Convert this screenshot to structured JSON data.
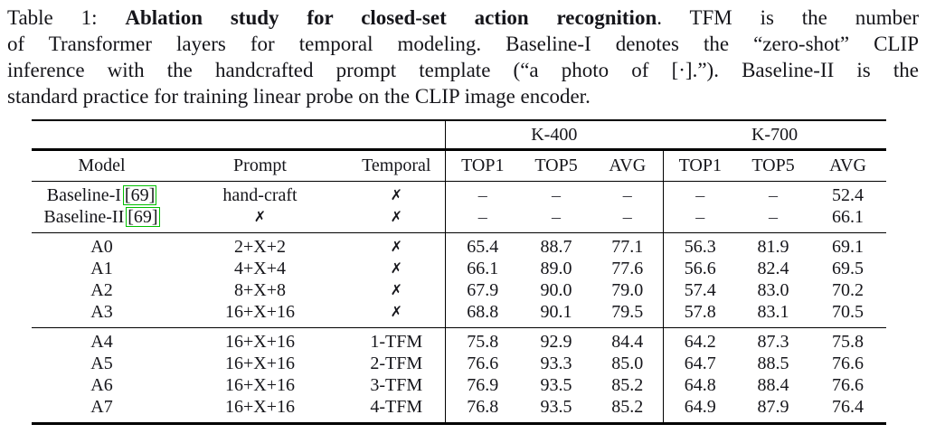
{
  "caption": {
    "line1_prefix": "Table 1: ",
    "line1_bold": "Ablation study for closed-set action recognition",
    "line1_rest": ". TFM is the number",
    "line2": "of Transformer layers for temporal modeling. Baseline-I denotes the “zero-shot” CLIP",
    "line3": "inference with the handcrafted prompt template (“a photo of [·].”). Baseline-II is the",
    "line4": "standard practice for training linear probe on the CLIP image encoder."
  },
  "table": {
    "groups": [
      "K-400",
      "K-700"
    ],
    "columns": [
      "Model",
      "Prompt",
      "Temporal",
      "TOP1",
      "TOP5",
      "AVG",
      "TOP1",
      "TOP5",
      "AVG"
    ],
    "sections": [
      {
        "rows": [
          {
            "model": "Baseline-I",
            "cite": "[69]",
            "prompt": "hand-craft",
            "temporal": "✗",
            "values": [
              "–",
              "–",
              "–",
              "–",
              "–",
              "52.4"
            ]
          },
          {
            "model": "Baseline-II",
            "cite": "[69]",
            "prompt": "✗",
            "temporal": "✗",
            "values": [
              "–",
              "–",
              "–",
              "–",
              "–",
              "66.1"
            ]
          }
        ]
      },
      {
        "rows": [
          {
            "model": "A0",
            "prompt": "2+X+2",
            "temporal": "✗",
            "values": [
              "65.4",
              "88.7",
              "77.1",
              "56.3",
              "81.9",
              "69.1"
            ]
          },
          {
            "model": "A1",
            "prompt": "4+X+4",
            "temporal": "✗",
            "values": [
              "66.1",
              "89.0",
              "77.6",
              "56.6",
              "82.4",
              "69.5"
            ]
          },
          {
            "model": "A2",
            "prompt": "8+X+8",
            "temporal": "✗",
            "values": [
              "67.9",
              "90.0",
              "79.0",
              "57.4",
              "83.0",
              "70.2"
            ]
          },
          {
            "model": "A3",
            "prompt": "16+X+16",
            "temporal": "✗",
            "values": [
              "68.8",
              "90.1",
              "79.5",
              "57.8",
              "83.1",
              "70.5"
            ]
          }
        ]
      },
      {
        "rows": [
          {
            "model": "A4",
            "prompt": "16+X+16",
            "temporal": "1-TFM",
            "values": [
              "75.8",
              "92.9",
              "84.4",
              "64.2",
              "87.3",
              "75.8"
            ]
          },
          {
            "model": "A5",
            "prompt": "16+X+16",
            "temporal": "2-TFM",
            "values": [
              "76.6",
              "93.3",
              "85.0",
              "64.7",
              "88.5",
              "76.6"
            ]
          },
          {
            "model": "A6",
            "prompt": "16+X+16",
            "temporal": "3-TFM",
            "values": [
              "76.9",
              "93.5",
              "85.2",
              "64.8",
              "88.4",
              "76.6"
            ]
          },
          {
            "model": "A7",
            "prompt": "16+X+16",
            "temporal": "4-TFM",
            "values": [
              "76.8",
              "93.5",
              "85.2",
              "64.9",
              "87.9",
              "76.4"
            ]
          }
        ]
      }
    ]
  },
  "colors": {
    "citation_box_green": "#00bf00",
    "text": "#15151a",
    "rule": "#000000"
  }
}
